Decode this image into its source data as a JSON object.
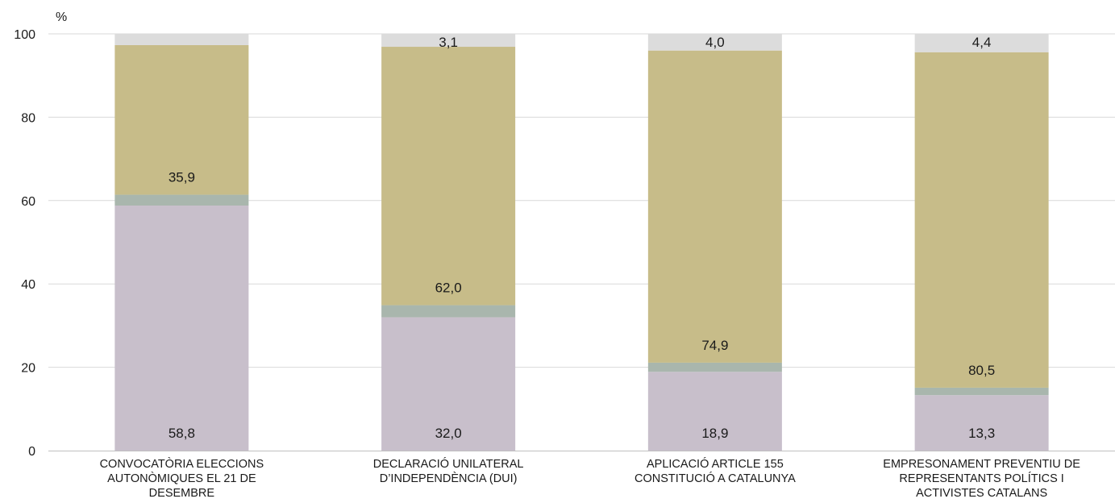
{
  "chart_data": {
    "type": "bar",
    "stacked": true,
    "unit_label": "%",
    "ylim": [
      0,
      100
    ],
    "yticks": [
      "0",
      "20",
      "40",
      "60",
      "80",
      "100"
    ],
    "grid": true,
    "categories": [
      [
        "CONVOCATÒRIA ELECCIONS",
        "AUTONÒMIQUES EL 21 DE",
        "DESEMBRE"
      ],
      [
        "DECLARACIÓ UNILATERAL",
        "D’INDEPENDÈNCIA (DUI)"
      ],
      [
        "APLICACIÓ ARTICLE 155",
        "CONSTITUCIÓ A CATALUNYA"
      ],
      [
        "EMPRESONAMENT PREVENTIU DE",
        "REPRESENTANTS POLÍTICS I",
        "ACTIVISTES CATALANS"
      ]
    ],
    "series": [
      {
        "color": "#c8bfcb",
        "values": [
          58.8,
          32.0,
          18.9,
          13.3
        ],
        "labels": [
          "58,8",
          "32,0",
          "18,9",
          "13,3"
        ]
      },
      {
        "color": "#a9b6ad",
        "values": [
          2.6,
          2.9,
          2.2,
          1.8
        ],
        "labels": [
          "",
          "",
          "",
          ""
        ]
      },
      {
        "color": "#c7bc89",
        "values": [
          35.9,
          62.0,
          74.9,
          80.5
        ],
        "labels": [
          "35,9",
          "62,0",
          "74,9",
          "80,5"
        ]
      },
      {
        "color": "#dcdcdc",
        "values": [
          2.7,
          3.1,
          4.0,
          4.4
        ],
        "labels": [
          "",
          "3,1",
          "4,0",
          "4,4"
        ]
      }
    ],
    "gridline_color": "#d9d9d9",
    "axis_color": "#bfbfbf"
  }
}
